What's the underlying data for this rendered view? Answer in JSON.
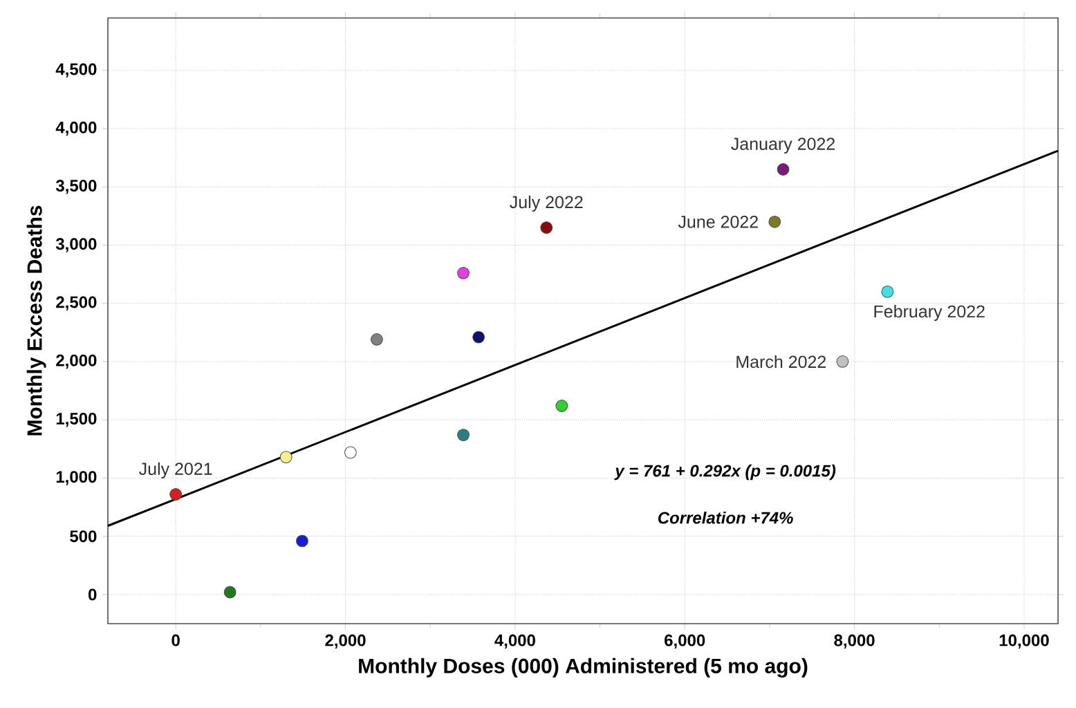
{
  "chart_data": {
    "type": "scatter",
    "xlabel": "Monthly Doses (000) Administered (5 mo ago)",
    "ylabel": "Monthly Excess Deaths",
    "xlim": [
      -800,
      10400
    ],
    "ylim": [
      -250,
      4950
    ],
    "xticks": [
      0,
      {
        "value": 2000,
        "label": "2,000"
      },
      {
        "value": 4000,
        "label": "4,000"
      },
      {
        "value": 6000,
        "label": "6,000"
      },
      {
        "value": 8000,
        "label": "8,000"
      },
      {
        "value": 10000,
        "label": "10,000"
      }
    ],
    "yticks": [
      0,
      500,
      {
        "value": 1000,
        "label": "1,000"
      },
      {
        "value": 1500,
        "label": "1,500"
      },
      {
        "value": 2000,
        "label": "2,000"
      },
      {
        "value": 2500,
        "label": "2,500"
      },
      {
        "value": 3000,
        "label": "3,000"
      },
      {
        "value": 3500,
        "label": "3,500"
      },
      {
        "value": 4000,
        "label": "4,000"
      },
      {
        "value": 4500,
        "label": "4,500"
      }
    ],
    "grid": true,
    "series": [
      {
        "marker": "circle",
        "x": [
          0,
          640,
          1490,
          1300,
          2060,
          2370,
          3390,
          3570,
          3390,
          4370,
          4550,
          7160,
          7060,
          8390,
          7860
        ],
        "values": [
          860,
          20,
          460,
          1180,
          1220,
          2190,
          2760,
          2210,
          1370,
          3150,
          1620,
          3650,
          3200,
          2600,
          2000
        ],
        "colors": [
          "#d62020",
          "#1e7a1e",
          "#1a1adf",
          "#f5f08c",
          "#ffffff",
          "#808080",
          "#e040e0",
          "#101070",
          "#2a8080",
          "#8b0a0a",
          "#30d030",
          "#7a1a7a",
          "#7a7a2a",
          "#40e0e8",
          "#c0c0c0"
        ]
      },
      {
        "type": "line",
        "x": [
          -800,
          10400
        ],
        "values": [
          590,
          3810
        ],
        "color": "#000000"
      }
    ],
    "annotations": [
      {
        "text": "July 2021",
        "x": 0,
        "y": 860
      },
      {
        "text": "July 2022",
        "x": 4370,
        "y": 3150
      },
      {
        "text": "January 2022",
        "x": 7160,
        "y": 3650
      },
      {
        "text": "June 2022",
        "x": 7060,
        "y": 3200
      },
      {
        "text": "March 2022",
        "x": 7860,
        "y": 2000
      },
      {
        "text": "February 2022",
        "x": 8390,
        "y": 2600
      },
      "y = 761 + 0.292x (p = 0.0015)",
      "Correlation +74%"
    ]
  }
}
